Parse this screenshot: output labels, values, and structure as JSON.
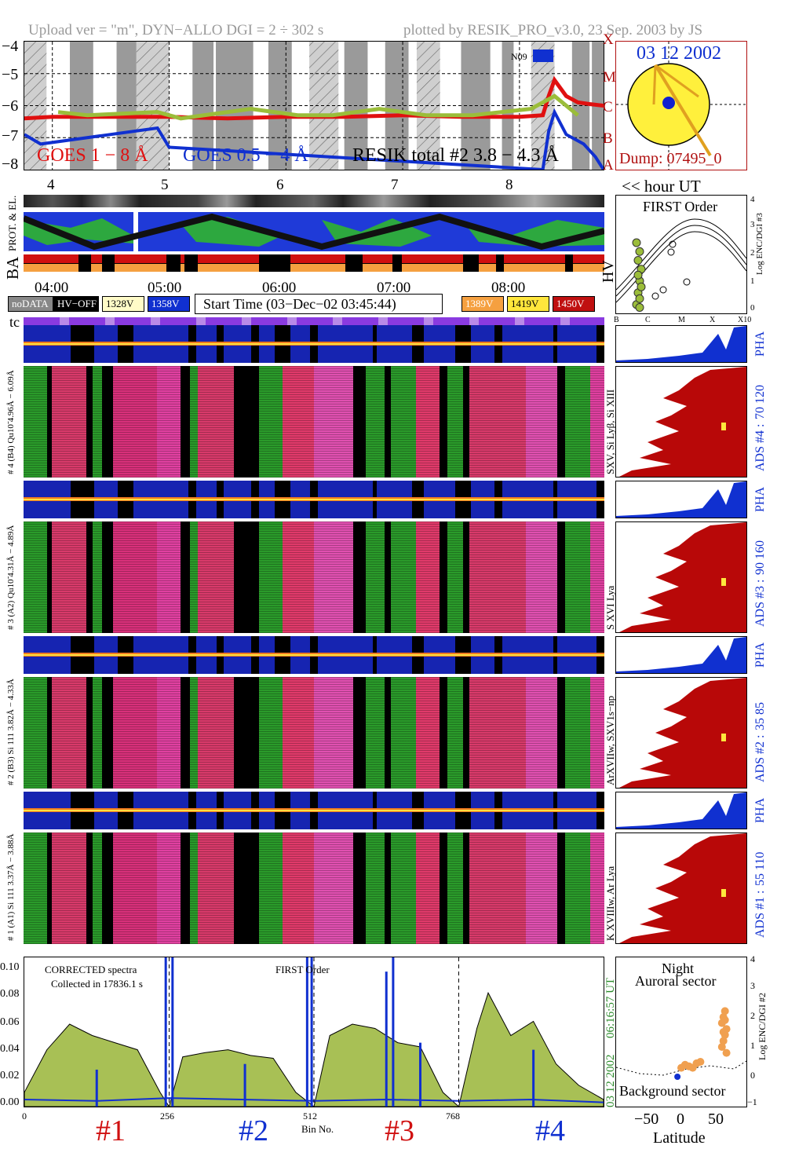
{
  "header": {
    "left": "Upload ver = \"m\", DYN−ALLO DGI =   2 ÷ 302 s",
    "right": "plotted by RESIK_PRO_v3.0, 23 Sep. 2003 by JS"
  },
  "goes": {
    "y_ticks": [
      "−4",
      "−5",
      "−6",
      "−7",
      "−8"
    ],
    "class_labels": [
      "X",
      "M",
      "C",
      "B",
      "A"
    ],
    "legend_1": "GOES 1 − 8 Å",
    "legend_2": "GOES 0.5 − 4 Å",
    "legend_3": "RESIK total #2  3.8 − 4.3 Å",
    "region": "N09",
    "colors": {
      "goes_long": "#e01010",
      "goes_short": "#1030d0",
      "resik": "#9bbd3a"
    }
  },
  "sun": {
    "date": "03 12 2002",
    "dump": "Dump: 07495_0"
  },
  "hour_axis": {
    "ticks": [
      "4",
      "5",
      "6",
      "7",
      "8"
    ],
    "unit_label": "<< hour UT"
  },
  "orbit": {
    "label_prot": "PROT. & EL.",
    "label_ba": "BA",
    "label_hv": "HV",
    "time_ticks": [
      "04:00",
      "05:00",
      "06:00",
      "07:00",
      "08:00"
    ]
  },
  "legend_row": {
    "nodata": "noDATA",
    "hvoff": "HV−OFF",
    "l328": "1328V",
    "l358": "1358V",
    "start_time": "Start Time (03−Dec−02 03:45:44)",
    "l389": "1389V",
    "l419": "1419V",
    "l450": "1450V",
    "tc": "tc"
  },
  "first_order": {
    "title": "FIRST Order",
    "ylabel": "Log ENC/DGI #3",
    "y_ticks": [
      "4",
      "3",
      "2",
      "1",
      "0"
    ],
    "x_ticks": [
      "B",
      "C",
      "M",
      "X",
      "X10"
    ]
  },
  "channels": [
    {
      "left_label": "# 4 (B4) Qu10̃ 4.96Å − 6.09Å",
      "line_label": "SXV, Si Lyβ, Si XIII",
      "ads": "ADS #4 :",
      "ads_range": "70 120",
      "pha": "PHA"
    },
    {
      "left_label": "# 3 (A2) Qu10̃ 4.31Å − 4.89Å",
      "line_label": "S XVI Lya",
      "ads": "ADS #3 :",
      "ads_range": "90 160",
      "pha": "PHA"
    },
    {
      "left_label": "# 2 (B3) Si 111 3.82Å − 4.33Å",
      "line_label": "ArXVIIw, SXV1s−np",
      "ads": "ADS #2 :",
      "ads_range": "35 85",
      "pha": "PHA"
    },
    {
      "left_label": "# 1 (A1) Si 111 3.37Å − 3.88Å",
      "line_label": "K XVIIIw, Ar Lya",
      "ads": "ADS #1 :",
      "ads_range": "55 110",
      "pha": "PHA"
    }
  ],
  "spectrum": {
    "note1": "CORRECTED spectra",
    "note2": "Collected in 17836.1 s",
    "center": "FIRST Order",
    "side_time": "06:16:57 UT",
    "side_date": "03 12 2002",
    "y_ticks": [
      "0.10",
      "0.08",
      "0.06",
      "0.04",
      "0.02",
      "0.00"
    ],
    "x_ticks": [
      "0",
      "256",
      "512",
      "768"
    ],
    "xlabel": "Bin No.",
    "segments": [
      "#1",
      "#2",
      "#3",
      "#4"
    ],
    "segment_colors": [
      "#d01010",
      "#1030d0",
      "#d01010",
      "#1030d0"
    ]
  },
  "aurora": {
    "title1": "Night",
    "title2": "Auroral sector",
    "bottom": "Background sector",
    "ylabel": "Log ENC/DGI #2",
    "y_ticks": [
      "4",
      "3",
      "2",
      "1",
      "0",
      "−1"
    ],
    "x_ticks": [
      "−50",
      "0",
      "50"
    ],
    "xlabel": "Latitude"
  },
  "chart_data": [
    {
      "type": "line",
      "title": "",
      "ylabel": "",
      "ylim": [
        -8,
        -4
      ],
      "xlim": [
        3.76,
        8.72
      ],
      "series": [
        {
          "name": "GOES 1 − 8 Å",
          "x": [
            3.76,
            4.0,
            4.5,
            5.0,
            5.5,
            6.0,
            6.5,
            7.0,
            7.5,
            8.0,
            8.2,
            8.25,
            8.3,
            8.4,
            8.5,
            8.6,
            8.72
          ],
          "y": [
            -6.4,
            -6.35,
            -6.35,
            -6.35,
            -6.4,
            -6.35,
            -6.35,
            -6.3,
            -6.35,
            -6.35,
            -6.3,
            -5.7,
            -5.2,
            -5.7,
            -5.9,
            -5.95,
            -6.0
          ]
        },
        {
          "name": "GOES 0.5 − 4 Å",
          "x": [
            3.76,
            3.9,
            4.9,
            5.0,
            8.2,
            8.25,
            8.3,
            8.4,
            8.55,
            8.65,
            8.72
          ],
          "y": [
            -6.9,
            -7.2,
            -6.7,
            -7.3,
            -8.0,
            -6.8,
            -6.2,
            -6.9,
            -7.2,
            -7.6,
            -8.0
          ]
        },
        {
          "name": "RESIK total #2  3.8 − 4.3 Å",
          "x": [
            4.05,
            4.3,
            4.9,
            5.1,
            5.7,
            6.1,
            6.4,
            6.8,
            7.2,
            7.6,
            8.1,
            8.3,
            8.5
          ],
          "y": [
            -6.2,
            -6.3,
            -6.2,
            -6.4,
            -6.1,
            -6.3,
            -6.3,
            -6.1,
            -6.3,
            -6.3,
            -6.1,
            -5.7,
            -6.3
          ]
        }
      ]
    },
    {
      "type": "area",
      "title": "",
      "xlabel": "Bin No.",
      "ylim": [
        0,
        0.105
      ],
      "xlim": [
        0,
        1024
      ],
      "series": [
        {
          "name": "",
          "x": [
            0,
            40,
            80,
            120,
            160,
            200,
            240,
            256,
            280,
            320,
            360,
            400,
            440,
            480,
            512,
            540,
            580,
            620,
            660,
            700,
            740,
            768,
            800,
            820,
            860,
            900,
            940,
            980,
            1024
          ],
          "y": [
            0.01,
            0.04,
            0.058,
            0.05,
            0.045,
            0.04,
            0.01,
            0.0,
            0.035,
            0.038,
            0.04,
            0.036,
            0.034,
            0.01,
            0.0,
            0.05,
            0.058,
            0.055,
            0.045,
            0.042,
            0.01,
            0.0,
            0.055,
            0.08,
            0.05,
            0.06,
            0.03,
            0.015,
            0.005
          ]
        },
        {
          "name": "",
          "x": [
            0,
            128,
            256,
            384,
            512,
            640,
            768,
            896,
            1024
          ],
          "y": [
            0.005,
            0.004,
            0.006,
            0.005,
            0.004,
            0.005,
            0.004,
            0.005,
            0.003
          ]
        }
      ]
    },
    {
      "type": "scatter",
      "title": "FIRST Order",
      "ylabel": "Log ENC/DGI #3",
      "ylim": [
        0,
        4
      ],
      "series": [
        {
          "name": "",
          "x": [
            0.4,
            0.45,
            0.5,
            0.55,
            0.45,
            0.5,
            0.4,
            0.5,
            0.55,
            0.45,
            0.5
          ],
          "y": [
            0.3,
            0.7,
            1.1,
            1.5,
            1.8,
            2.1,
            2.4,
            0.5,
            0.9,
            1.3,
            0.2
          ]
        }
      ]
    },
    {
      "type": "scatter",
      "title": "",
      "xlabel": "Latitude",
      "ylabel": "Log ENC/DGI #2",
      "ylim": [
        -1,
        4
      ],
      "xlim": [
        -80,
        90
      ],
      "series": [
        {
          "name": "",
          "x": [
            58,
            60,
            62,
            64,
            58,
            60,
            62,
            64,
            60,
            62,
            5,
            10,
            15,
            20,
            25,
            30
          ],
          "y": [
            1.0,
            1.2,
            1.4,
            1.6,
            1.8,
            2.0,
            2.2,
            0.8,
            1.5,
            1.9,
            0.3,
            0.4,
            0.35,
            0.3,
            0.45,
            0.5
          ]
        }
      ]
    }
  ]
}
